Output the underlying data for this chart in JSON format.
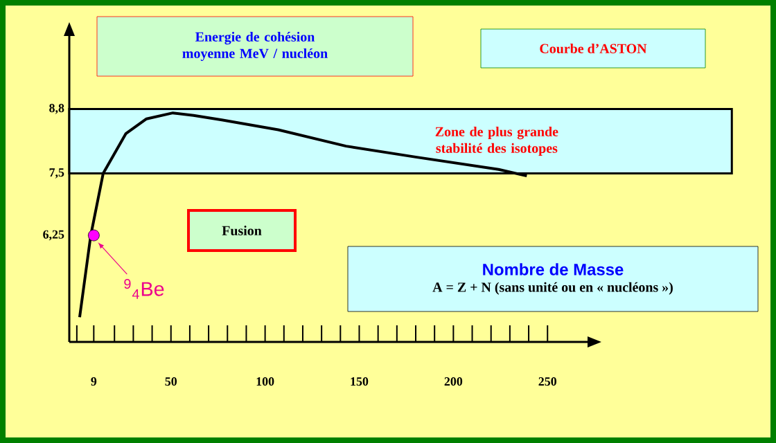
{
  "chart_data": {
    "type": "line",
    "title": "Courbe d’ASTON",
    "ylabel": "Energie de cohésion moyenne MeV / nucléon",
    "xlabel": "Nombre de Masse",
    "series": [
      {
        "type": "line",
        "color": "#000000",
        "marker": "none",
        "x": [
          1.5,
          7.4,
          14,
          26,
          37,
          51,
          62,
          77,
          107,
          143,
          180,
          224,
          239
        ],
        "values": [
          4.6,
          6.25,
          7.5,
          8.3,
          8.6,
          8.72,
          8.67,
          8.58,
          8.38,
          8.05,
          7.83,
          7.58,
          7.45
        ]
      },
      {
        "type": "scatter",
        "color": "#ff00ff",
        "marker": "circle",
        "x": [
          9
        ],
        "values": [
          6.25
        ]
      }
    ],
    "xlim": [
      -4,
      272
    ],
    "ylim": [
      4.1,
      10.3
    ],
    "xticks": [
      {
        "value": 0,
        "label": null
      },
      {
        "value": 9,
        "label": "9"
      },
      {
        "value": 20,
        "label": null
      },
      {
        "value": 30,
        "label": null
      },
      {
        "value": 40,
        "label": null
      },
      50,
      {
        "value": 60,
        "label": null
      },
      {
        "value": 70,
        "label": null
      },
      {
        "value": 80,
        "label": null
      },
      {
        "value": 90,
        "label": null
      },
      100,
      {
        "value": 110,
        "label": null
      },
      {
        "value": 120,
        "label": null
      },
      {
        "value": 130,
        "label": null
      },
      {
        "value": 140,
        "label": null
      },
      150,
      {
        "value": 160,
        "label": null
      },
      {
        "value": 170,
        "label": null
      },
      {
        "value": 180,
        "label": null
      },
      {
        "value": 190,
        "label": null
      },
      200,
      {
        "value": 210,
        "label": null
      },
      {
        "value": 220,
        "label": null
      },
      {
        "value": 230,
        "label": null
      },
      {
        "value": 240,
        "label": null
      },
      250
    ],
    "yticks": [
      {
        "value": 6.25,
        "label": "6,25"
      },
      {
        "value": 7.5,
        "label": "7,5"
      },
      {
        "value": 8.8,
        "label": "8,8"
      }
    ],
    "bands": [
      {
        "axis": "y",
        "from": 7.5,
        "to": 8.8,
        "label": "Zone de plus grande stabilité des isotopes",
        "color": "#ccffff"
      }
    ],
    "annotations": [
      "Fusion",
      {
        "text": "$^{9}$$_{4}$Be",
        "x": 9,
        "y": 6.25
      },
      "A = Z + N (sans unité ou en « nucléons »)"
    ]
  }
}
